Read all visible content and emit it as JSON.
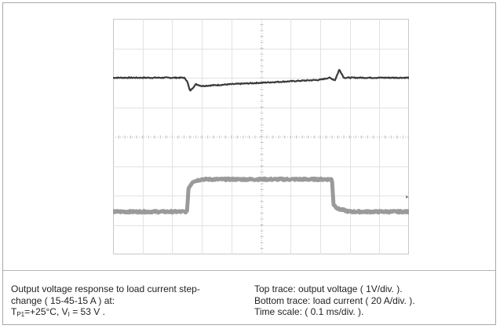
{
  "chart_data": {
    "type": "line",
    "title": "",
    "xlabel": "",
    "ylabel": "",
    "x_units": "ms",
    "divisions": {
      "x": 10,
      "y": 8
    },
    "grid": true,
    "series": [
      {
        "role": "top trace",
        "color": "#3a3a3a",
        "x": [
          0,
          0.24,
          0.25,
          0.26,
          0.28,
          0.3,
          0.4,
          0.6,
          0.7,
          0.73,
          0.75,
          0.765,
          0.78,
          1.0
        ],
        "y": [
          6.0,
          6.0,
          5.9,
          5.55,
          5.78,
          5.72,
          5.78,
          5.88,
          5.93,
          6.0,
          5.92,
          6.28,
          6.0,
          6.0
        ]
      },
      {
        "role": "bottom trace",
        "color": "#9a9a9a",
        "x": [
          0,
          0.25,
          0.255,
          0.27,
          0.3,
          0.74,
          0.745,
          0.76,
          0.8,
          1.0
        ],
        "y": [
          1.45,
          1.45,
          2.25,
          2.48,
          2.55,
          2.55,
          1.7,
          1.55,
          1.45,
          1.45
        ]
      }
    ]
  },
  "caption": {
    "left_line1": "Output voltage response to load current step-",
    "left_line2": "change ( 15-45-15 A ) at:",
    "left_line3_a": "T",
    "left_line3_sub1": "P1",
    "left_line3_b": "=+25°C, V",
    "left_line3_sub2": "I",
    "left_line3_c": " =  53 V .",
    "right_line1": "Top trace: output voltage ( 1V/div. ).",
    "right_line2": "Bottom trace: load current ( 20 A/div. ).",
    "right_line3": "Time scale: ( 0.1 ms/div. )."
  }
}
